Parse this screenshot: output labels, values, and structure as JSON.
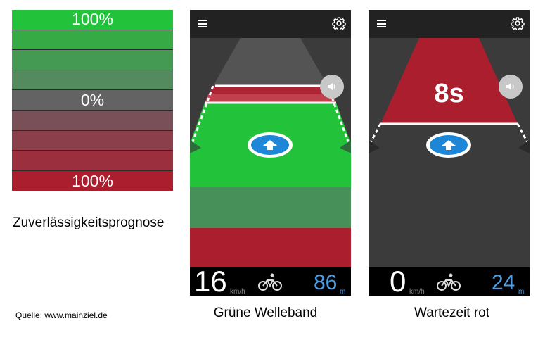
{
  "legend": {
    "rows": [
      {
        "label": "100%",
        "color": "#22c23a"
      },
      {
        "label": "",
        "color": "#35aa45"
      },
      {
        "label": "",
        "color": "#449a52"
      },
      {
        "label": "",
        "color": "#538a5e"
      },
      {
        "label": "0%",
        "color": "#636363"
      },
      {
        "label": "",
        "color": "#7a5058"
      },
      {
        "label": "",
        "color": "#8a3f4b"
      },
      {
        "label": "",
        "color": "#9b2f3d"
      },
      {
        "label": "100%",
        "color": "#aa1e2e"
      }
    ],
    "caption": "Zuverlässigkeitsprognose",
    "source": "Quelle: www.mainziel.de"
  },
  "phone_green": {
    "speed": "16",
    "speed_unit": "km/h",
    "distance": "86",
    "distance_unit": "m",
    "caption": "Grüne Welleband",
    "icons": [
      "menu-icon",
      "gear-icon",
      "speaker-icon",
      "arrow-up-icon",
      "bicycle-icon"
    ]
  },
  "phone_red": {
    "timer": "8s",
    "speed": "0",
    "speed_unit": "km/h",
    "distance": "24",
    "distance_unit": "m",
    "caption": "Wartezeit rot",
    "icons": [
      "menu-icon",
      "gear-icon",
      "speaker-icon",
      "arrow-up-icon",
      "bicycle-icon"
    ]
  },
  "colors": {
    "green": "#22c23a",
    "green_dim": "#47905a",
    "red": "#aa1e2e",
    "accent_blue": "#4a9ee3"
  }
}
